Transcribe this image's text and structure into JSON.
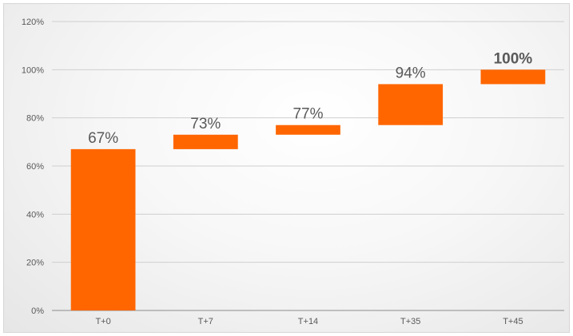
{
  "chart_data": {
    "type": "bar",
    "subtype": "waterfall",
    "title": "",
    "xlabel": "",
    "ylabel": "",
    "categories": [
      "T+0",
      "T+7",
      "T+14",
      "T+35",
      "T+45"
    ],
    "values": [
      67,
      73,
      77,
      94,
      100
    ],
    "value_labels": [
      "67%",
      "73%",
      "77%",
      "94%",
      "100%"
    ],
    "emphasized_label_index": 4,
    "ylim": [
      0,
      120
    ],
    "ytick_step": 20,
    "ytick_labels": [
      "0%",
      "20%",
      "40%",
      "60%",
      "80%",
      "100%",
      "120%"
    ],
    "grid": true,
    "legend": "none",
    "bar_color": "#ff6600",
    "grid_color": "#cfcfcf",
    "label_color": "#595959"
  }
}
